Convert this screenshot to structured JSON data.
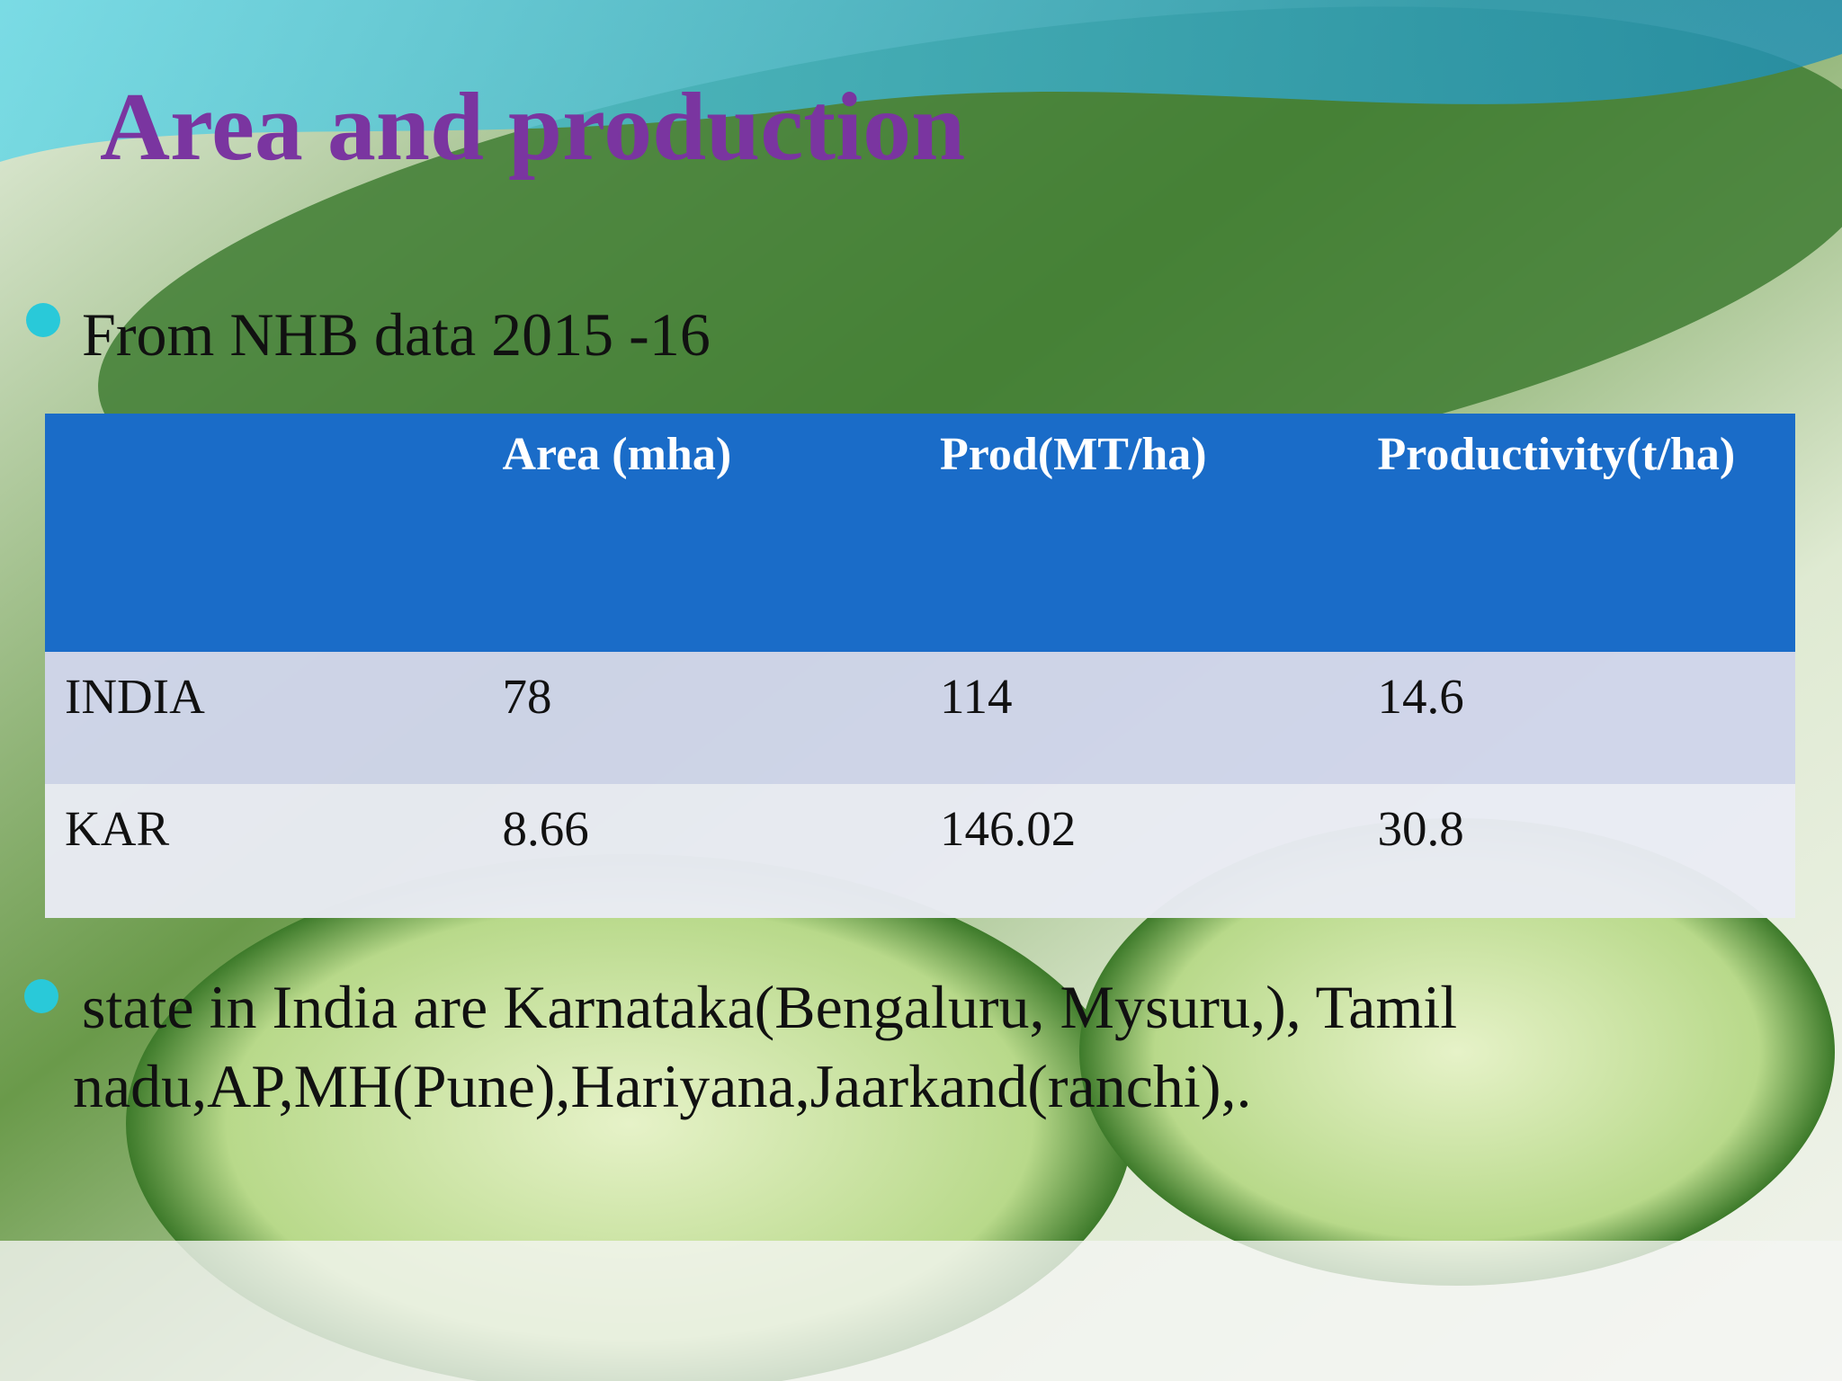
{
  "title": "Area and production",
  "bullets": [
    "From NHB data 2015 -16",
    "state in India are Karnataka(Bengaluru, Mysuru,), Tamil nadu,AP,MH(Pune),Hariyana,Jaarkand(ranchi),."
  ],
  "table": {
    "header": [
      "Area (mha)",
      "Prod(MT/ha)",
      "Productivity(t/ha)"
    ],
    "rows": [
      [
        "INDIA",
        78,
        114,
        14.6
      ],
      [
        "KAR",
        8.66,
        146.02,
        30.8
      ]
    ]
  }
}
